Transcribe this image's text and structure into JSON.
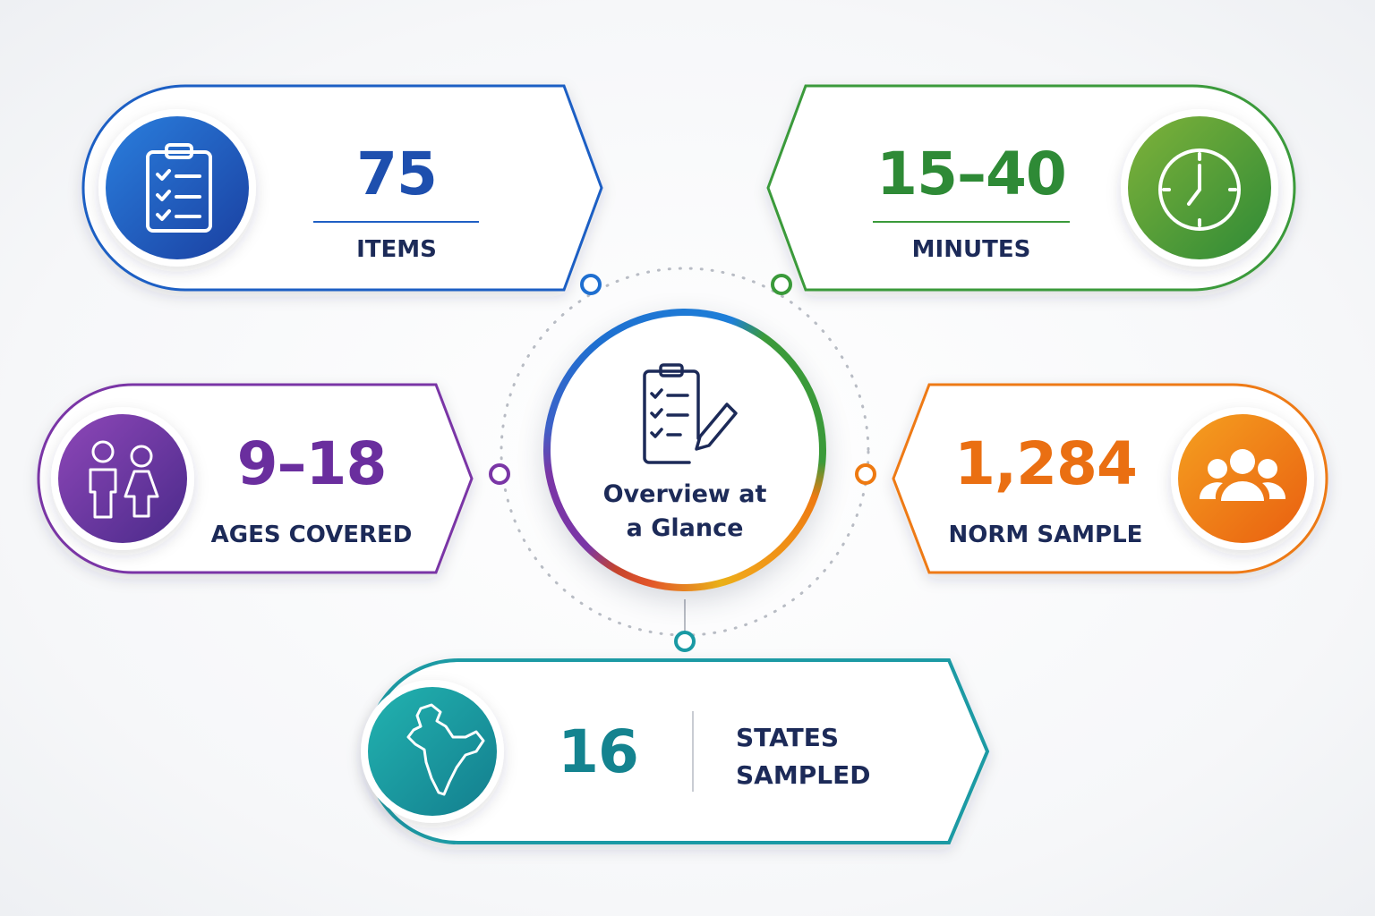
{
  "center": {
    "title": "Overview at a Glance"
  },
  "cards": [
    {
      "value": "75",
      "label": "ITEMS"
    },
    {
      "value": "15–40",
      "label": "MINUTES"
    },
    {
      "value": "9–18",
      "label": "AGES COVERED"
    },
    {
      "value": "1,284",
      "label": "NORM SAMPLE"
    },
    {
      "value": "16",
      "label": "STATES SAMPLED"
    }
  ]
}
